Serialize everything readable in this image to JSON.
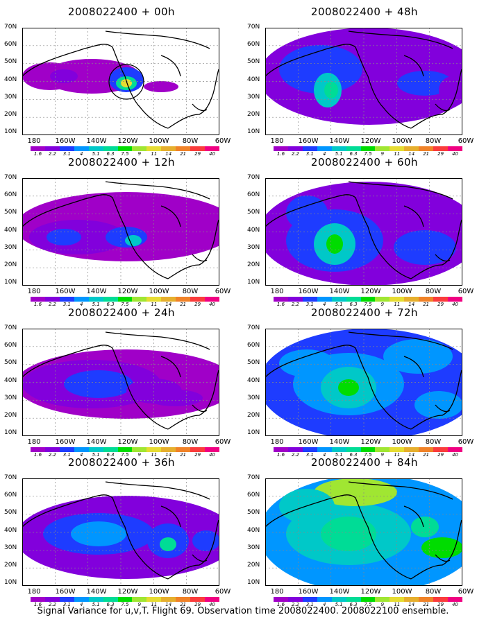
{
  "panels": [
    {
      "title": "2008022400 + 00h"
    },
    {
      "title": "2008022400 + 48h"
    },
    {
      "title": "2008022400 + 12h"
    },
    {
      "title": "2008022400 + 60h"
    },
    {
      "title": "2008022400 + 24h"
    },
    {
      "title": "2008022400 + 72h"
    },
    {
      "title": "2008022400 + 36h"
    },
    {
      "title": "2008022400 + 84h"
    }
  ],
  "lat_labels": [
    "70N",
    "60N",
    "50N",
    "40N",
    "30N",
    "20N",
    "10N"
  ],
  "lon_labels": [
    "180",
    "160W",
    "140W",
    "120W",
    "100W",
    "80W",
    "60W"
  ],
  "colorbar": {
    "labels": [
      "1.6",
      "2.2",
      "3.1",
      "4",
      "5.1",
      "6.3",
      "7.5",
      "9",
      "11",
      "14",
      "21",
      "29",
      "40"
    ],
    "colors": [
      "#a000c8",
      "#8200dc",
      "#1e3cff",
      "#0096ff",
      "#00c8c8",
      "#00dc96",
      "#00dc00",
      "#a0e632",
      "#e6dc32",
      "#e6af2d",
      "#f08228",
      "#fa3c3c",
      "#f00082"
    ]
  },
  "caption": "Signal Variance for u,v,T. Flight 69. Observation time 2008022400. 2008022100 ensemble.",
  "chart_data": {
    "type": "heatmap",
    "variable": "Signal Variance for u,v,T",
    "flight": "Flight 69",
    "observation_time": "2008022400",
    "ensemble": "2008022100",
    "forecast_hours": [
      0,
      12,
      24,
      36,
      48,
      60,
      72,
      84
    ],
    "lat_range": [
      "10N",
      "70N"
    ],
    "lon_range": [
      "180",
      "60W"
    ],
    "colorbar_levels": [
      1.6,
      2.2,
      3.1,
      4,
      5.1,
      6.3,
      7.5,
      9,
      11,
      14,
      21,
      29,
      40
    ],
    "grid": true
  }
}
